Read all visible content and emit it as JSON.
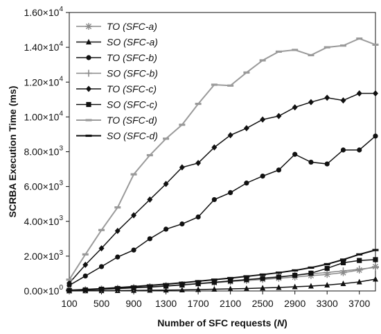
{
  "chart_data": {
    "type": "line",
    "xlabel": "Number of SFC requests (N)",
    "ylabel": "SCRBA Execution Time (ms)",
    "xlim": [
      100,
      3900
    ],
    "ylim": [
      0,
      16000
    ],
    "grid": false,
    "legend_position": "top-left",
    "x": [
      100,
      300,
      500,
      700,
      900,
      1100,
      1300,
      1500,
      1700,
      1900,
      2100,
      2300,
      2500,
      2700,
      2900,
      3100,
      3300,
      3500,
      3700,
      3900
    ],
    "x_tick_labels": [
      "100",
      "500",
      "900",
      "1300",
      "1700",
      "2100",
      "2500",
      "2900",
      "3300",
      "3700"
    ],
    "x_tick_values": [
      100,
      500,
      900,
      1300,
      1700,
      2100,
      2500,
      2900,
      3300,
      3700
    ],
    "y_tick_labels": [
      "0.00×10",
      "2.00×10",
      "4.00×10",
      "6.00×10",
      "8.00×10",
      "1.00×10",
      "1.20×10",
      "1.40×10",
      "1.60×10"
    ],
    "y_tick_exponents": [
      "0",
      "3",
      "3",
      "3",
      "3",
      "4",
      "4",
      "4",
      "4"
    ],
    "y_tick_values": [
      0,
      2000,
      4000,
      6000,
      8000,
      10000,
      12000,
      14000,
      16000
    ],
    "series": [
      {
        "name": "TO (SFC-a)",
        "color": "#8a8a8a",
        "marker": "asterisk",
        "values": [
          20,
          50,
          90,
          130,
          180,
          230,
          290,
          350,
          410,
          470,
          540,
          600,
          660,
          730,
          800,
          880,
          950,
          1050,
          1200,
          1400
        ]
      },
      {
        "name": "SO (SFC-a)",
        "color": "#111111",
        "marker": "triangle",
        "values": [
          5,
          10,
          15,
          20,
          30,
          40,
          50,
          60,
          80,
          100,
          120,
          140,
          170,
          200,
          240,
          280,
          340,
          420,
          520,
          680
        ]
      },
      {
        "name": "TO (SFC-b)",
        "color": "#111111",
        "marker": "circle",
        "values": [
          320,
          860,
          1400,
          1950,
          2350,
          3000,
          3550,
          3850,
          4250,
          5250,
          5650,
          6200,
          6600,
          6950,
          7850,
          7400,
          7300,
          8100,
          8100,
          8900
        ]
      },
      {
        "name": "SO (SFC-b)",
        "color": "#8a8a8a",
        "marker": "plus",
        "values": [
          40,
          70,
          110,
          150,
          190,
          240,
          300,
          360,
          430,
          500,
          580,
          660,
          740,
          820,
          900,
          980,
          1060,
          1150,
          1250,
          1350
        ]
      },
      {
        "name": "TO (SFC-c)",
        "color": "#111111",
        "marker": "diamond",
        "values": [
          450,
          1500,
          2450,
          3450,
          4350,
          5250,
          6150,
          7100,
          7350,
          8250,
          8950,
          9350,
          9850,
          10050,
          10550,
          10850,
          11100,
          10950,
          11350,
          11350
        ]
      },
      {
        "name": "SO (SFC-c)",
        "color": "#111111",
        "marker": "square",
        "values": [
          30,
          60,
          100,
          140,
          180,
          220,
          280,
          340,
          420,
          500,
          570,
          650,
          720,
          800,
          900,
          1020,
          1300,
          1620,
          1750,
          1800
        ]
      },
      {
        "name": "TO (SFC-d)",
        "color": "#9a9a9a",
        "marker": "dash",
        "values": [
          650,
          2100,
          3500,
          4800,
          6700,
          7800,
          8750,
          9550,
          10750,
          11850,
          11800,
          12550,
          13250,
          13750,
          13850,
          13550,
          14000,
          14100,
          14500,
          14150
        ]
      },
      {
        "name": "SO (SFC-d)",
        "color": "#111111",
        "marker": "dash",
        "values": [
          40,
          80,
          130,
          190,
          250,
          320,
          390,
          470,
          560,
          650,
          740,
          840,
          940,
          1050,
          1180,
          1340,
          1540,
          1800,
          2100,
          2350
        ]
      }
    ]
  }
}
